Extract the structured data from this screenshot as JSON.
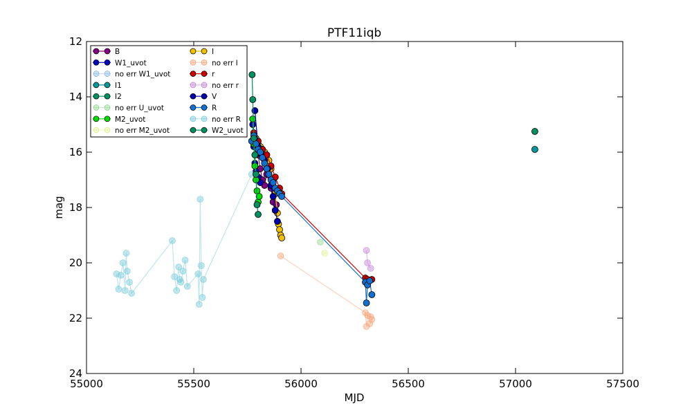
{
  "chart_data": {
    "type": "scatter",
    "title": "PTF11iqb",
    "xlabel": "MJD",
    "ylabel": "mag",
    "xlim": [
      55000,
      57500
    ],
    "ylim": [
      24,
      12
    ],
    "y_inverted": true,
    "xticks": [
      "55000",
      "55500",
      "56000",
      "56500",
      "57000",
      "57500"
    ],
    "yticks": [
      "12",
      "14",
      "16",
      "18",
      "20",
      "22",
      "24"
    ],
    "grid": false,
    "legend_position": "top-left",
    "series": [
      {
        "name": "B",
        "color": "#800080",
        "faded": false,
        "x": [
          55780,
          55800,
          55810,
          55820,
          55830,
          55840,
          55860,
          55870,
          55880,
          55885
        ],
        "y": [
          15.6,
          16.1,
          16.6,
          17.0,
          17.2,
          16.8,
          17.3,
          17.8,
          18.1,
          17.9
        ]
      },
      {
        "name": "W1_uvot",
        "color": "#0000bb",
        "faded": false,
        "x": [
          55775,
          55780,
          55785,
          55790,
          55800,
          55810
        ],
        "y": [
          15.0,
          15.8,
          16.4,
          16.7,
          16.9,
          17.1
        ]
      },
      {
        "name": "no err W1_uvot",
        "color": "#87b8e8",
        "faded": true,
        "x": [],
        "y": []
      },
      {
        "name": "I1",
        "color": "#009999",
        "faded": false,
        "x": [
          57090
        ],
        "y": [
          15.9
        ]
      },
      {
        "name": "I2",
        "color": "#009060",
        "faded": false,
        "x": [
          57090
        ],
        "y": [
          15.25
        ]
      },
      {
        "name": "no err U_uvot",
        "color": "#8fd48f",
        "faded": true,
        "x": [
          56090
        ],
        "y": [
          19.25
        ]
      },
      {
        "name": "M2_uvot",
        "color": "#00dd00",
        "faded": false,
        "x": [
          55775,
          55780,
          55785,
          55790,
          55795,
          55800,
          55805
        ],
        "y": [
          14.8,
          15.7,
          16.5,
          17.0,
          17.4,
          17.8,
          17.6
        ]
      },
      {
        "name": "no err M2_uvot",
        "color": "#e0f090",
        "faded": true,
        "x": [
          56110
        ],
        "y": [
          19.65
        ]
      },
      {
        "name": "I",
        "color": "#f0c000",
        "faded": false,
        "x": [
          55790,
          55800,
          55810,
          55820,
          55830,
          55840,
          55850,
          55860,
          55870,
          55880,
          55890,
          55895,
          55900,
          55905,
          55910
        ],
        "y": [
          15.5,
          15.7,
          15.8,
          15.9,
          16.0,
          16.1,
          16.3,
          16.6,
          17.0,
          17.5,
          18.2,
          18.6,
          18.8,
          19.0,
          19.1
        ]
      },
      {
        "name": "no err I",
        "color": "#f5a070",
        "faded": true,
        "x": [
          55905,
          56300,
          56305,
          56310,
          56325,
          56330,
          56320
        ],
        "y": [
          19.75,
          21.8,
          22.3,
          21.9,
          21.95,
          22.05,
          22.2
        ]
      },
      {
        "name": "r",
        "color": "#cc0000",
        "faded": false,
        "x": [
          55780,
          55800,
          55820,
          55840,
          55860,
          55880,
          55900,
          55910,
          56300,
          56310,
          56330
        ],
        "y": [
          15.3,
          15.6,
          15.9,
          16.1,
          16.5,
          16.9,
          17.3,
          17.5,
          20.55,
          20.6,
          20.6
        ]
      },
      {
        "name": "no err r",
        "color": "#c080d8",
        "faded": true,
        "x": [
          56305,
          56310,
          56325
        ],
        "y": [
          19.55,
          20.0,
          20.2
        ]
      },
      {
        "name": "V",
        "color": "#0000aa",
        "faded": false,
        "x": [
          55785,
          55800,
          55815,
          55830,
          55845,
          55860,
          55870,
          55880,
          55890
        ],
        "y": [
          14.5,
          15.8,
          16.1,
          16.3,
          16.6,
          17.2,
          17.6,
          18.1,
          18.5
        ]
      },
      {
        "name": "R",
        "color": "#1070d0",
        "faded": false,
        "x": [
          55770,
          55780,
          55790,
          55800,
          55810,
          55820,
          55830,
          55840,
          55850,
          55860,
          55870,
          55880,
          55890,
          55900,
          55910,
          56300,
          56305,
          56310,
          56320,
          56330
        ],
        "y": [
          15.6,
          15.4,
          15.7,
          15.9,
          16.0,
          16.2,
          16.4,
          16.6,
          16.8,
          17.0,
          17.1,
          17.3,
          17.4,
          17.5,
          17.6,
          20.7,
          21.45,
          20.8,
          20.65,
          21.15
        ]
      },
      {
        "name": "no err R",
        "color": "#70c8d8",
        "faded": true,
        "x": [
          55140,
          55150,
          55160,
          55170,
          55180,
          55185,
          55190,
          55200,
          55210,
          55400,
          55410,
          55420,
          55430,
          55435,
          55440,
          55450,
          55460,
          55470,
          55520,
          55525,
          55530,
          55535,
          55540,
          55545,
          55770
        ],
        "y": [
          20.4,
          20.95,
          20.45,
          20.0,
          21.0,
          19.65,
          20.3,
          20.7,
          21.1,
          19.2,
          20.5,
          21.0,
          20.15,
          20.6,
          20.7,
          20.3,
          19.9,
          20.85,
          20.4,
          21.5,
          17.7,
          20.1,
          21.25,
          20.6,
          16.8
        ]
      },
      {
        "name": "W2_uvot",
        "color": "#009060",
        "faded": false,
        "x": [
          55772,
          55775,
          55780,
          55785,
          55790,
          55795,
          55800
        ],
        "y": [
          13.2,
          14.1,
          15.5,
          16.1,
          16.8,
          17.9,
          18.25
        ]
      }
    ]
  }
}
